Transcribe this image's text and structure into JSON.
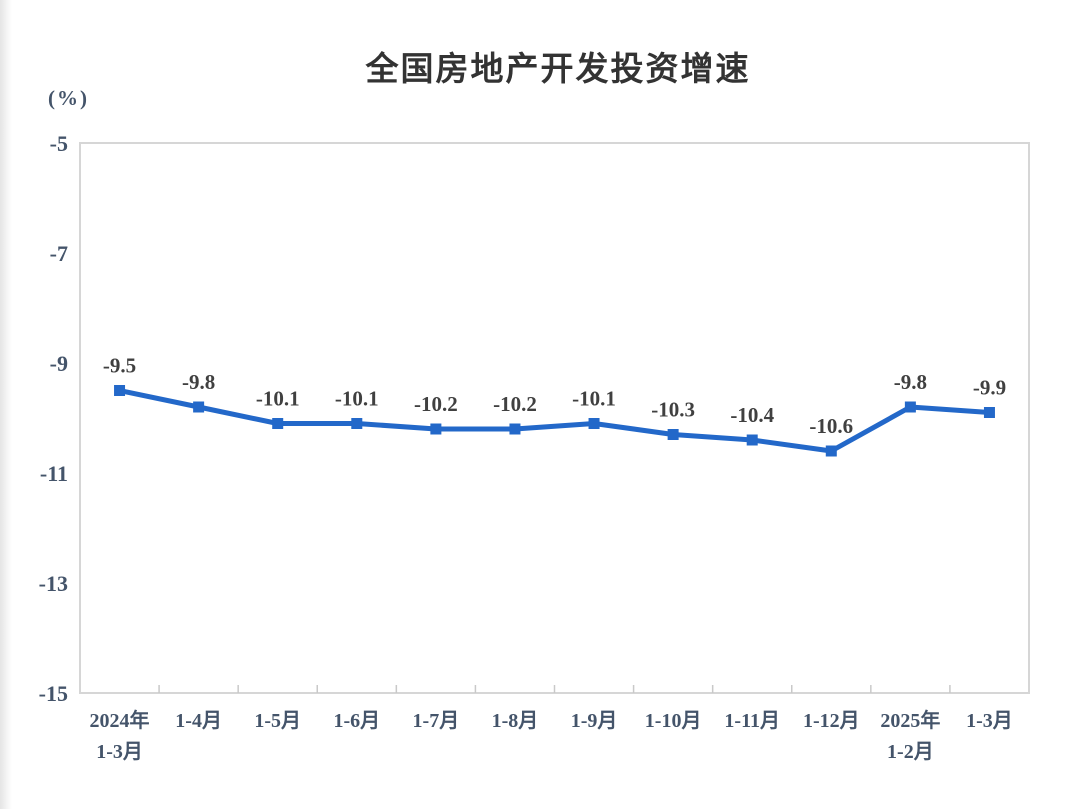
{
  "page": {
    "title": "全国房地产开发投资增速"
  },
  "chart_data": {
    "type": "line",
    "title": "全国房地产开发投资增速",
    "xlabel": "",
    "ylabel": "（%）",
    "ylabel_display": "(%)",
    "categories": [
      [
        "2024年",
        "1-3月"
      ],
      [
        "1-4月"
      ],
      [
        "1-5月"
      ],
      [
        "1-6月"
      ],
      [
        "1-7月"
      ],
      [
        "1-8月"
      ],
      [
        "1-9月"
      ],
      [
        "1-10月"
      ],
      [
        "1-11月"
      ],
      [
        "1-12月"
      ],
      [
        "2025年",
        "1-2月"
      ],
      [
        "1-3月"
      ]
    ],
    "series": [
      {
        "name": "全国房地产开发投资增速",
        "values": [
          -9.5,
          -9.8,
          -10.1,
          -10.1,
          -10.2,
          -10.2,
          -10.1,
          -10.3,
          -10.4,
          -10.6,
          -9.8,
          -9.9
        ],
        "data_labels": [
          "-9.5",
          "-9.8",
          "-10.1",
          "-10.1",
          "-10.2",
          "-10.2",
          "-10.1",
          "-10.3",
          "-10.4",
          "-10.6",
          "-9.8",
          "-9.9"
        ]
      }
    ],
    "y_ticks": [
      -5,
      -7,
      -9,
      -11,
      -13,
      -15
    ],
    "ylim": [
      -15,
      -5
    ],
    "grid": false,
    "legend_position": "none",
    "colors": {
      "line": "#2368c9",
      "marker": "#2368c9",
      "axis_frame": "#d6d6d6",
      "tick": "#c9c9c9",
      "axis_label": "#44546a",
      "data_label": "#404040",
      "title": "#333333"
    }
  }
}
